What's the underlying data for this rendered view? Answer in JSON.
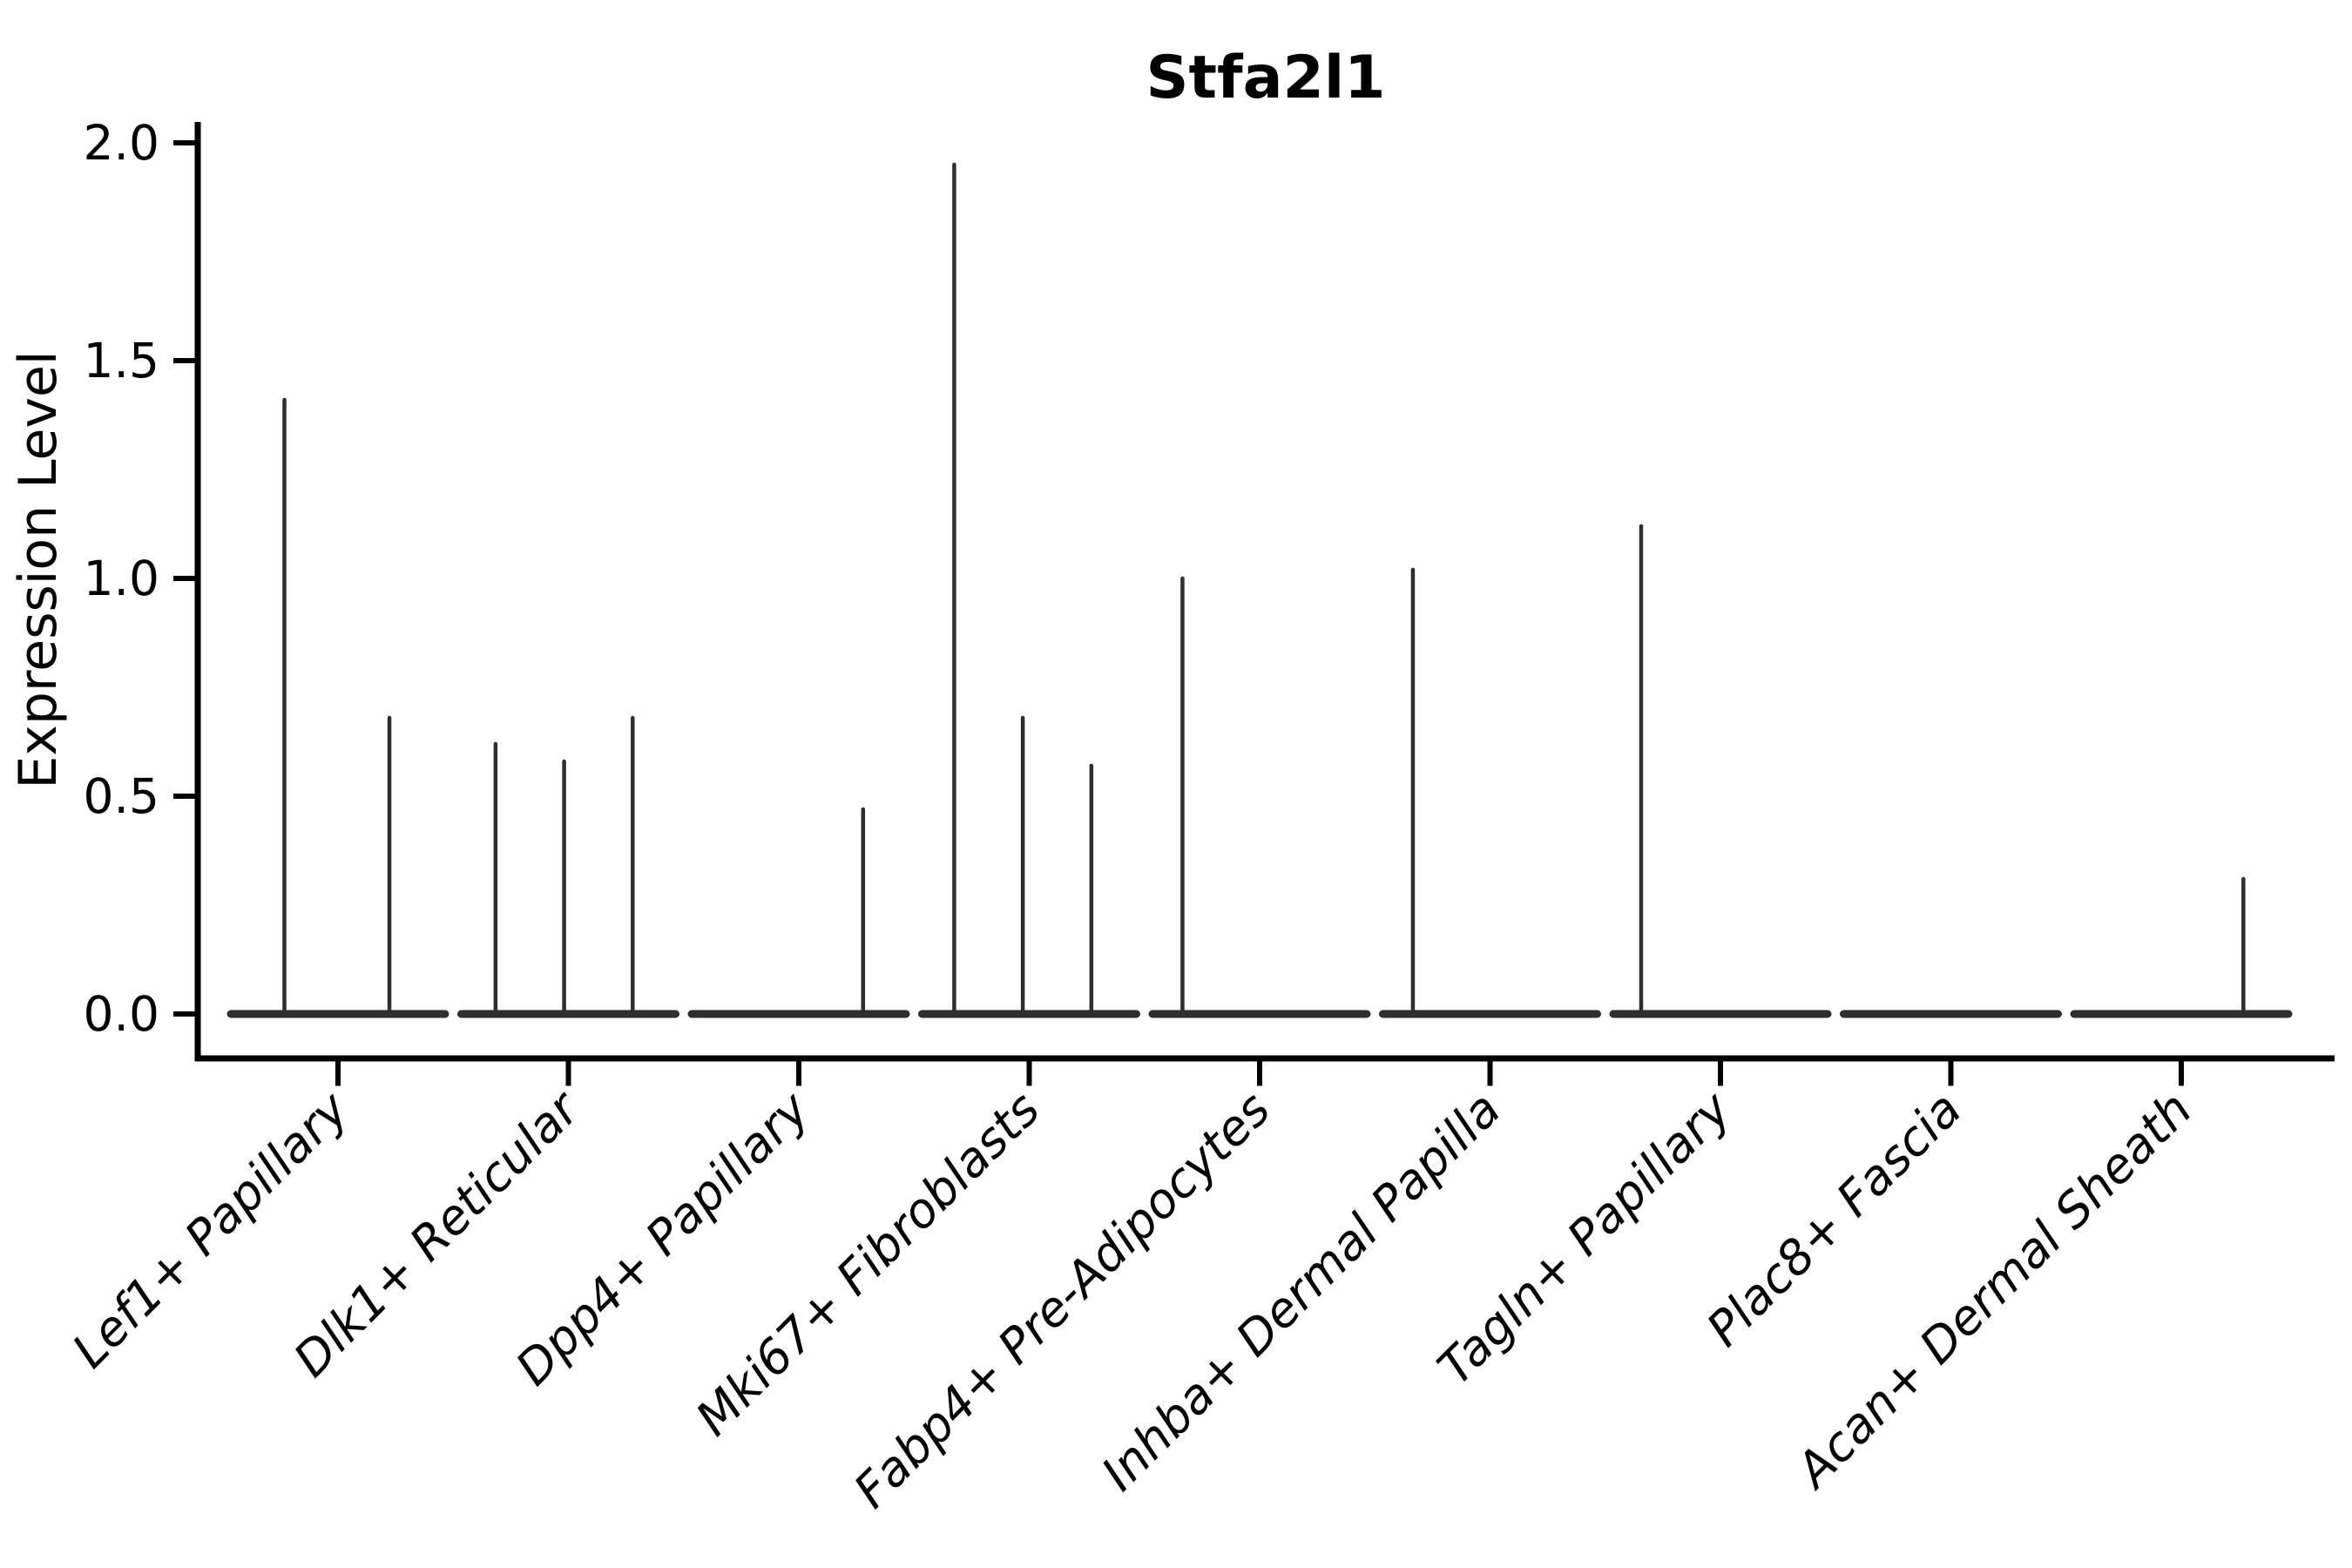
{
  "title": "Stfa2l1",
  "ylabel": "Expression Level",
  "colors": {
    "violin": "#2e2e2e",
    "axis": "#000000",
    "background": "#ffffff"
  },
  "chart_data": {
    "type": "violin",
    "title": "Stfa2l1",
    "xlabel": "",
    "ylabel": "Expression Level",
    "ylim": [
      -0.1,
      2.05
    ],
    "ytick_labels": [
      "0.0",
      "0.5",
      "1.0",
      "1.5",
      "2.0"
    ],
    "ytick_values": [
      0.0,
      0.5,
      1.0,
      1.5,
      2.0
    ],
    "grid": false,
    "legend": "none",
    "categories": [
      "Lef1+ Papillary",
      "Dlk1+ Reticular",
      "Dpp4+ Papillary",
      "Mki67+ Fibroblasts",
      "Fabp4+ Pre-Adipocytes",
      "Inhba+ Dermal Papilla",
      "Tagln+ Papillary",
      "Plac8+ Fascia",
      "Acan+ Dermal Sheath"
    ],
    "series": [
      {
        "category": "Lef1+ Papillary",
        "baseline_value": 0.0,
        "spikes": [
          {
            "slot": 0.25,
            "value": 1.41
          },
          {
            "slot": 0.74,
            "value": 0.68
          }
        ]
      },
      {
        "category": "Dlk1+ Reticular",
        "baseline_value": 0.0,
        "spikes": [
          {
            "slot": 0.16,
            "value": 0.62
          },
          {
            "slot": 0.48,
            "value": 0.58
          },
          {
            "slot": 0.8,
            "value": 0.68
          }
        ]
      },
      {
        "category": "Dpp4+ Papillary",
        "baseline_value": 0.0,
        "spikes": [
          {
            "slot": 0.8,
            "value": 0.47
          }
        ]
      },
      {
        "category": "Mki67+ Fibroblasts",
        "baseline_value": 0.0,
        "spikes": [
          {
            "slot": 0.15,
            "value": 1.95
          },
          {
            "slot": 0.47,
            "value": 0.68
          },
          {
            "slot": 0.79,
            "value": 0.57
          }
        ]
      },
      {
        "category": "Fabp4+ Pre-Adipocytes",
        "baseline_value": 0.0,
        "spikes": [
          {
            "slot": 0.14,
            "value": 1.0
          }
        ]
      },
      {
        "category": "Inhba+ Dermal Papilla",
        "baseline_value": 0.0,
        "spikes": [
          {
            "slot": 0.14,
            "value": 1.02
          }
        ]
      },
      {
        "category": "Tagln+ Papillary",
        "baseline_value": 0.0,
        "spikes": [
          {
            "slot": 0.13,
            "value": 1.12
          }
        ]
      },
      {
        "category": "Plac8+ Fascia",
        "baseline_value": 0.0,
        "spikes": []
      },
      {
        "category": "Acan+ Dermal Sheath",
        "baseline_value": 0.0,
        "spikes": [
          {
            "slot": 0.79,
            "value": 0.31
          }
        ]
      }
    ]
  }
}
